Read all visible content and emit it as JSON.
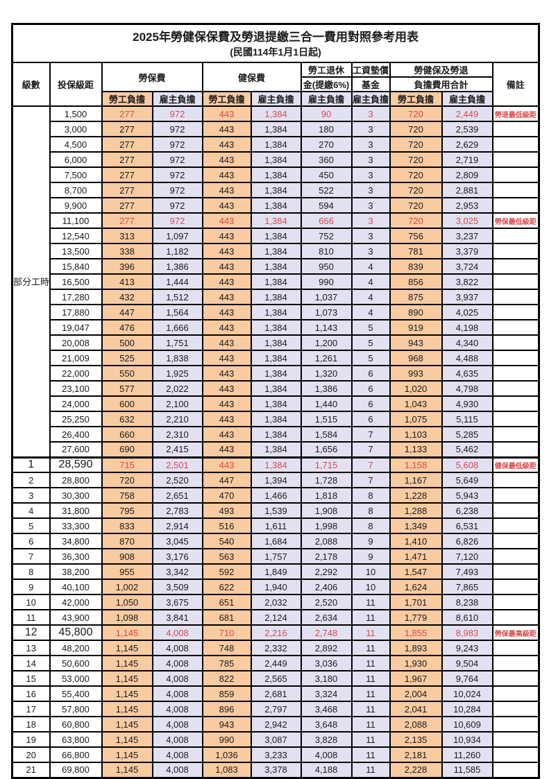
{
  "title": "2025年勞健保保費及勞退提繳三合一費用對照參考用表",
  "subtitle": "(民國114年1月1日起)",
  "columns": {
    "level": "級數",
    "salary": "投保級距",
    "labor_insurance": "勞保費",
    "health_insurance": "健保費",
    "pension_line1": "勞工退休",
    "pension_line2": "金(提繳6%)",
    "wage_fund_line1": "工資墊償",
    "wage_fund_line2": "基金",
    "total_line1": "勞健保及勞退",
    "total_line2": "負擔費用合計",
    "remark": "備註",
    "employee_share": "勞工負擔",
    "employer_share": "雇主負擔"
  },
  "part_time_label": "部分工時",
  "colors": {
    "employee_bg": "#F9CBA1",
    "employer_bg": "#E2E1F2",
    "highlight_red": "#E0474B",
    "border": "#000000"
  },
  "rows": [
    {
      "level": "",
      "salary": "1,500",
      "values": [
        "277",
        "972",
        "443",
        "1,384",
        "90",
        "3",
        "720",
        "2,449"
      ],
      "remark": "勞退最低級距",
      "red": true,
      "big": false
    },
    {
      "level": "",
      "salary": "3,000",
      "values": [
        "277",
        "972",
        "443",
        "1,384",
        "180",
        "3",
        "720",
        "2,539"
      ],
      "remark": "",
      "red": false,
      "big": false
    },
    {
      "level": "",
      "salary": "4,500",
      "values": [
        "277",
        "972",
        "443",
        "1,384",
        "270",
        "3",
        "720",
        "2,629"
      ],
      "remark": "",
      "red": false,
      "big": false
    },
    {
      "level": "",
      "salary": "6,000",
      "values": [
        "277",
        "972",
        "443",
        "1,384",
        "360",
        "3",
        "720",
        "2,719"
      ],
      "remark": "",
      "red": false,
      "big": false
    },
    {
      "level": "",
      "salary": "7,500",
      "values": [
        "277",
        "972",
        "443",
        "1,384",
        "450",
        "3",
        "720",
        "2,809"
      ],
      "remark": "",
      "red": false,
      "big": false
    },
    {
      "level": "",
      "salary": "8,700",
      "values": [
        "277",
        "972",
        "443",
        "1,384",
        "522",
        "3",
        "720",
        "2,881"
      ],
      "remark": "",
      "red": false,
      "big": false
    },
    {
      "level": "",
      "salary": "9,900",
      "values": [
        "277",
        "972",
        "443",
        "1,384",
        "594",
        "3",
        "720",
        "2,953"
      ],
      "remark": "",
      "red": false,
      "big": false
    },
    {
      "level": "",
      "salary": "11,100",
      "values": [
        "277",
        "972",
        "443",
        "1,384",
        "666",
        "3",
        "720",
        "3,025"
      ],
      "remark": "勞保最低級距",
      "red": true,
      "big": false
    },
    {
      "level": "",
      "salary": "12,540",
      "values": [
        "313",
        "1,097",
        "443",
        "1,384",
        "752",
        "3",
        "756",
        "3,237"
      ],
      "remark": "",
      "red": false,
      "big": false
    },
    {
      "level": "",
      "salary": "13,500",
      "values": [
        "338",
        "1,182",
        "443",
        "1,384",
        "810",
        "3",
        "781",
        "3,379"
      ],
      "remark": "",
      "red": false,
      "big": false
    },
    {
      "level": "",
      "salary": "15,840",
      "values": [
        "396",
        "1,386",
        "443",
        "1,384",
        "950",
        "4",
        "839",
        "3,724"
      ],
      "remark": "",
      "red": false,
      "big": false
    },
    {
      "level": "",
      "salary": "16,500",
      "values": [
        "413",
        "1,444",
        "443",
        "1,384",
        "990",
        "4",
        "856",
        "3,822"
      ],
      "remark": "",
      "red": false,
      "big": false
    },
    {
      "level": "",
      "salary": "17,280",
      "values": [
        "432",
        "1,512",
        "443",
        "1,384",
        "1,037",
        "4",
        "875",
        "3,937"
      ],
      "remark": "",
      "red": false,
      "big": false
    },
    {
      "level": "",
      "salary": "17,880",
      "values": [
        "447",
        "1,564",
        "443",
        "1,384",
        "1,073",
        "4",
        "890",
        "4,025"
      ],
      "remark": "",
      "red": false,
      "big": false
    },
    {
      "level": "",
      "salary": "19,047",
      "values": [
        "476",
        "1,666",
        "443",
        "1,384",
        "1,143",
        "5",
        "919",
        "4,198"
      ],
      "remark": "",
      "red": false,
      "big": false
    },
    {
      "level": "",
      "salary": "20,008",
      "values": [
        "500",
        "1,751",
        "443",
        "1,384",
        "1,200",
        "5",
        "943",
        "4,340"
      ],
      "remark": "",
      "red": false,
      "big": false
    },
    {
      "level": "",
      "salary": "21,009",
      "values": [
        "525",
        "1,838",
        "443",
        "1,384",
        "1,261",
        "5",
        "968",
        "4,488"
      ],
      "remark": "",
      "red": false,
      "big": false
    },
    {
      "level": "",
      "salary": "22,000",
      "values": [
        "550",
        "1,925",
        "443",
        "1,384",
        "1,320",
        "6",
        "993",
        "4,635"
      ],
      "remark": "",
      "red": false,
      "big": false
    },
    {
      "level": "",
      "salary": "23,100",
      "values": [
        "577",
        "2,022",
        "443",
        "1,384",
        "1,386",
        "6",
        "1,020",
        "4,798"
      ],
      "remark": "",
      "red": false,
      "big": false
    },
    {
      "level": "",
      "salary": "24,000",
      "values": [
        "600",
        "2,100",
        "443",
        "1,384",
        "1,440",
        "6",
        "1,043",
        "4,930"
      ],
      "remark": "",
      "red": false,
      "big": false
    },
    {
      "level": "",
      "salary": "25,250",
      "values": [
        "632",
        "2,210",
        "443",
        "1,384",
        "1,515",
        "6",
        "1,075",
        "5,115"
      ],
      "remark": "",
      "red": false,
      "big": false
    },
    {
      "level": "",
      "salary": "26,400",
      "values": [
        "660",
        "2,310",
        "443",
        "1,384",
        "1,584",
        "7",
        "1,103",
        "5,285"
      ],
      "remark": "",
      "red": false,
      "big": false
    },
    {
      "level": "",
      "salary": "27,600",
      "values": [
        "690",
        "2,415",
        "443",
        "1,384",
        "1,656",
        "7",
        "1,133",
        "5,462"
      ],
      "remark": "",
      "red": false,
      "big": false
    },
    {
      "level": "1",
      "salary": "28,590",
      "values": [
        "715",
        "2,501",
        "443",
        "1,384",
        "1,715",
        "7",
        "1,158",
        "5,608"
      ],
      "remark": "健保最低級距",
      "red": true,
      "big": true
    },
    {
      "level": "2",
      "salary": "28,800",
      "values": [
        "720",
        "2,520",
        "447",
        "1,394",
        "1,728",
        "7",
        "1,167",
        "5,649"
      ],
      "remark": "",
      "red": false,
      "big": false
    },
    {
      "level": "3",
      "salary": "30,300",
      "values": [
        "758",
        "2,651",
        "470",
        "1,466",
        "1,818",
        "8",
        "1,228",
        "5,943"
      ],
      "remark": "",
      "red": false,
      "big": false
    },
    {
      "level": "4",
      "salary": "31,800",
      "values": [
        "795",
        "2,783",
        "493",
        "1,539",
        "1,908",
        "8",
        "1,288",
        "6,238"
      ],
      "remark": "",
      "red": false,
      "big": false
    },
    {
      "level": "5",
      "salary": "33,300",
      "values": [
        "833",
        "2,914",
        "516",
        "1,611",
        "1,998",
        "8",
        "1,349",
        "6,531"
      ],
      "remark": "",
      "red": false,
      "big": false
    },
    {
      "level": "6",
      "salary": "34,800",
      "values": [
        "870",
        "3,045",
        "540",
        "1,684",
        "2,088",
        "9",
        "1,410",
        "6,826"
      ],
      "remark": "",
      "red": false,
      "big": false
    },
    {
      "level": "7",
      "salary": "36,300",
      "values": [
        "908",
        "3,176",
        "563",
        "1,757",
        "2,178",
        "9",
        "1,471",
        "7,120"
      ],
      "remark": "",
      "red": false,
      "big": false
    },
    {
      "level": "8",
      "salary": "38,200",
      "values": [
        "955",
        "3,342",
        "592",
        "1,849",
        "2,292",
        "10",
        "1,547",
        "7,493"
      ],
      "remark": "",
      "red": false,
      "big": false
    },
    {
      "level": "9",
      "salary": "40,100",
      "values": [
        "1,002",
        "3,509",
        "622",
        "1,940",
        "2,406",
        "10",
        "1,624",
        "7,865"
      ],
      "remark": "",
      "red": false,
      "big": false
    },
    {
      "level": "10",
      "salary": "42,000",
      "values": [
        "1,050",
        "3,675",
        "651",
        "2,032",
        "2,520",
        "11",
        "1,701",
        "8,238"
      ],
      "remark": "",
      "red": false,
      "big": false
    },
    {
      "level": "11",
      "salary": "43,900",
      "values": [
        "1,098",
        "3,841",
        "681",
        "2,124",
        "2,634",
        "11",
        "1,779",
        "8,610"
      ],
      "remark": "",
      "red": false,
      "big": false
    },
    {
      "level": "12",
      "salary": "45,800",
      "values": [
        "1,145",
        "4,008",
        "710",
        "2,216",
        "2,748",
        "11",
        "1,855",
        "8,983"
      ],
      "remark": "勞保最高級距",
      "red": true,
      "big": true
    },
    {
      "level": "13",
      "salary": "48,200",
      "values": [
        "1,145",
        "4,008",
        "748",
        "2,332",
        "2,892",
        "11",
        "1,893",
        "9,243"
      ],
      "remark": "",
      "red": false,
      "big": false
    },
    {
      "level": "14",
      "salary": "50,600",
      "values": [
        "1,145",
        "4,008",
        "785",
        "2,449",
        "3,036",
        "11",
        "1,930",
        "9,504"
      ],
      "remark": "",
      "red": false,
      "big": false
    },
    {
      "level": "15",
      "salary": "53,000",
      "values": [
        "1,145",
        "4,008",
        "822",
        "2,565",
        "3,180",
        "11",
        "1,967",
        "9,764"
      ],
      "remark": "",
      "red": false,
      "big": false
    },
    {
      "level": "16",
      "salary": "55,400",
      "values": [
        "1,145",
        "4,008",
        "859",
        "2,681",
        "3,324",
        "11",
        "2,004",
        "10,024"
      ],
      "remark": "",
      "red": false,
      "big": false
    },
    {
      "level": "17",
      "salary": "57,800",
      "values": [
        "1,145",
        "4,008",
        "896",
        "2,797",
        "3,468",
        "11",
        "2,041",
        "10,284"
      ],
      "remark": "",
      "red": false,
      "big": false
    },
    {
      "level": "18",
      "salary": "60,800",
      "values": [
        "1,145",
        "4,008",
        "943",
        "2,942",
        "3,648",
        "11",
        "2,088",
        "10,609"
      ],
      "remark": "",
      "red": false,
      "big": false
    },
    {
      "level": "19",
      "salary": "63,800",
      "values": [
        "1,145",
        "4,008",
        "990",
        "3,087",
        "3,828",
        "11",
        "2,135",
        "10,934"
      ],
      "remark": "",
      "red": false,
      "big": false
    },
    {
      "level": "20",
      "salary": "66,800",
      "values": [
        "1,145",
        "4,008",
        "1,036",
        "3,233",
        "4,008",
        "11",
        "2,181",
        "11,260"
      ],
      "remark": "",
      "red": false,
      "big": false
    },
    {
      "level": "21",
      "salary": "69,800",
      "values": [
        "1,145",
        "4,008",
        "1,083",
        "3,378",
        "4,188",
        "11",
        "2,228",
        "11,585"
      ],
      "remark": "",
      "red": false,
      "big": false
    }
  ]
}
